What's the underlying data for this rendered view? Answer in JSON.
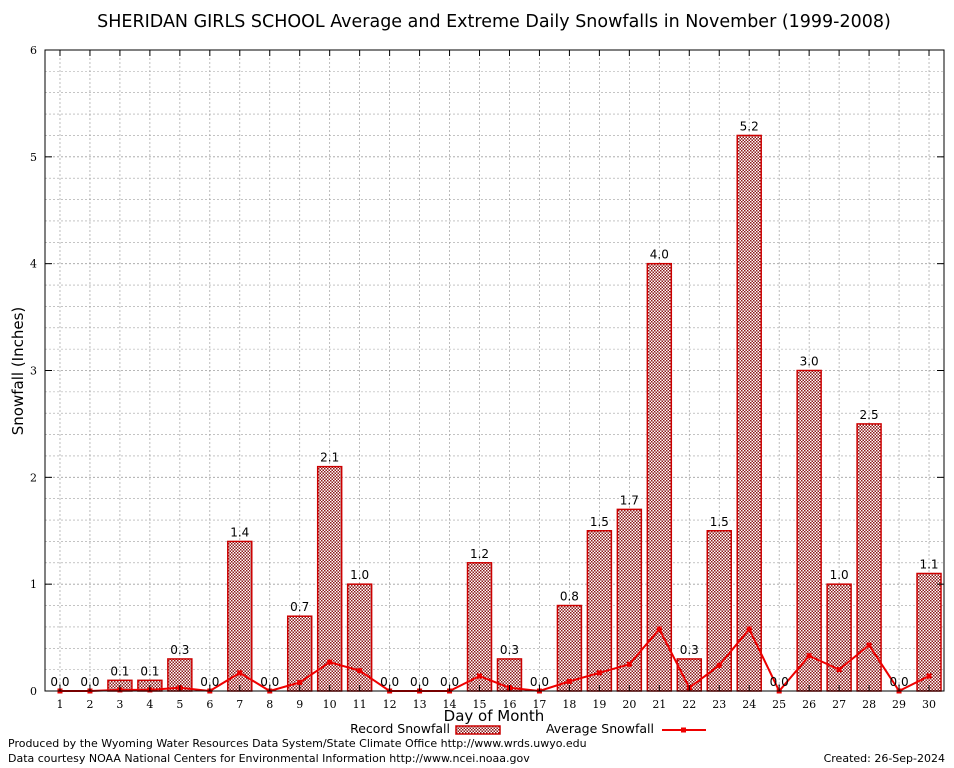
{
  "chart_data": {
    "type": "bar",
    "title": "SHERIDAN GIRLS SCHOOL Average and Extreme Daily Snowfalls in November (1999-2008)",
    "xlabel": "Day of Month",
    "ylabel": "Snowfall (Inches)",
    "ylim": [
      0,
      6
    ],
    "yticks": [
      0,
      1,
      2,
      3,
      4,
      5,
      6
    ],
    "grid": true,
    "categories": [
      "1",
      "2",
      "3",
      "4",
      "5",
      "6",
      "7",
      "8",
      "9",
      "10",
      "11",
      "12",
      "13",
      "14",
      "15",
      "16",
      "17",
      "18",
      "19",
      "20",
      "21",
      "22",
      "23",
      "24",
      "25",
      "26",
      "27",
      "28",
      "29",
      "30"
    ],
    "series": [
      {
        "name": "Record Snowfall",
        "kind": "bar",
        "color": "#cc0000",
        "values": [
          0.0,
          0.0,
          0.1,
          0.1,
          0.3,
          0.0,
          1.4,
          0.0,
          0.7,
          2.1,
          1.0,
          0.0,
          0.0,
          0.0,
          1.2,
          0.3,
          0.0,
          0.8,
          1.5,
          1.7,
          4.0,
          0.3,
          1.5,
          5.2,
          0.0,
          3.0,
          1.0,
          2.5,
          0.0,
          1.1
        ],
        "labels": [
          "0.0",
          "0.0",
          "0.1",
          "0.1",
          "0.3",
          "0.0",
          "1.4",
          "0.0",
          "0.7",
          "2.1",
          "1.0",
          "0.0",
          "0.0",
          "0.0",
          "1.2",
          "0.3",
          "0.0",
          "0.8",
          "1.5",
          "1.7",
          "4.0",
          "0.3",
          "1.5",
          "5.2",
          "0.0",
          "3.0",
          "1.0",
          "2.5",
          "0.0",
          "1.1"
        ]
      },
      {
        "name": "Average Snowfall",
        "kind": "line",
        "color": "#ee0000",
        "values": [
          0.0,
          0.0,
          0.01,
          0.01,
          0.03,
          0.0,
          0.17,
          0.0,
          0.08,
          0.27,
          0.19,
          0.0,
          0.0,
          0.0,
          0.14,
          0.03,
          0.0,
          0.09,
          0.17,
          0.25,
          0.58,
          0.03,
          0.24,
          0.58,
          0.0,
          0.33,
          0.2,
          0.43,
          0.0,
          0.14
        ]
      }
    ],
    "legend_position": "bottom-center"
  },
  "footer": {
    "produced_by": "Produced by the Wyoming Water Resources Data System/State Climate Office http://www.wrds.uwyo.edu",
    "courtesy": "Data courtesy NOAA National Centers for Environmental Information http://www.ncei.noaa.gov",
    "created": "Created: 26-Sep-2024"
  }
}
